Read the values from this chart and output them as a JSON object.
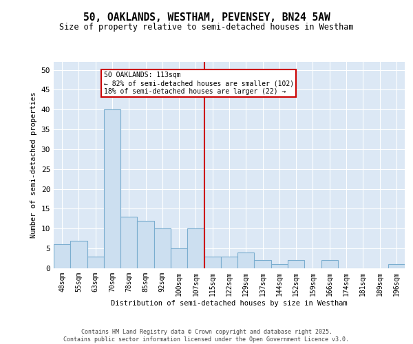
{
  "title_line1": "50, OAKLANDS, WESTHAM, PEVENSEY, BN24 5AW",
  "title_line2": "Size of property relative to semi-detached houses in Westham",
  "xlabel": "Distribution of semi-detached houses by size in Westham",
  "ylabel": "Number of semi-detached properties",
  "categories": [
    "48sqm",
    "55sqm",
    "63sqm",
    "70sqm",
    "78sqm",
    "85sqm",
    "92sqm",
    "100sqm",
    "107sqm",
    "115sqm",
    "122sqm",
    "129sqm",
    "137sqm",
    "144sqm",
    "152sqm",
    "159sqm",
    "166sqm",
    "174sqm",
    "181sqm",
    "189sqm",
    "196sqm"
  ],
  "values": [
    6,
    7,
    3,
    40,
    13,
    12,
    10,
    5,
    10,
    3,
    3,
    4,
    2,
    1,
    2,
    0,
    2,
    0,
    0,
    0,
    1
  ],
  "bar_color": "#ccdff0",
  "bar_edge_color": "#7aadcf",
  "bar_width": 1.0,
  "vline_x": 9.0,
  "vline_color": "#cc0000",
  "annotation_text": "50 OAKLANDS: 113sqm\n← 82% of semi-detached houses are smaller (102)\n18% of semi-detached houses are larger (22) →",
  "annotation_box_color": "#cc0000",
  "ylim": [
    0,
    52
  ],
  "yticks": [
    0,
    5,
    10,
    15,
    20,
    25,
    30,
    35,
    40,
    45,
    50
  ],
  "background_color": "#dce8f5",
  "footer_text": "Contains HM Land Registry data © Crown copyright and database right 2025.\nContains public sector information licensed under the Open Government Licence v3.0."
}
